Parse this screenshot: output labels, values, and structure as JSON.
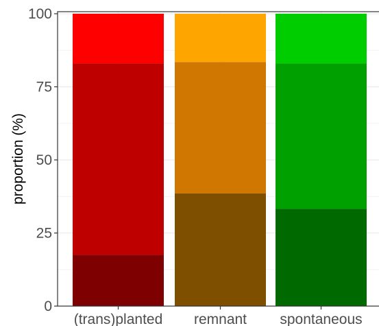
{
  "chart_data": {
    "type": "bar",
    "stacked": true,
    "categories": [
      "(trans)planted",
      "remnant",
      "spontaneous"
    ],
    "ylabel": "proportion (%)",
    "xlabel": "",
    "ylim": [
      0,
      100
    ],
    "yticks": [
      0,
      25,
      50,
      75,
      100
    ],
    "grid": true,
    "legend": "none",
    "stacks": [
      {
        "category": "(trans)planted",
        "segments": [
          {
            "value": 17.5,
            "color": "#7f0000"
          },
          {
            "value": 65.5,
            "color": "#bf0000"
          },
          {
            "value": 17.0,
            "color": "#ff0000"
          }
        ]
      },
      {
        "category": "remnant",
        "segments": [
          {
            "value": 38.5,
            "color": "#7f4f00"
          },
          {
            "value": 45.0,
            "color": "#cf7700"
          },
          {
            "value": 16.5,
            "color": "#ffa500"
          }
        ]
      },
      {
        "category": "spontaneous",
        "segments": [
          {
            "value": 33.3,
            "color": "#006a00"
          },
          {
            "value": 49.7,
            "color": "#00a000"
          },
          {
            "value": 17.0,
            "color": "#00cd00"
          }
        ]
      }
    ]
  }
}
